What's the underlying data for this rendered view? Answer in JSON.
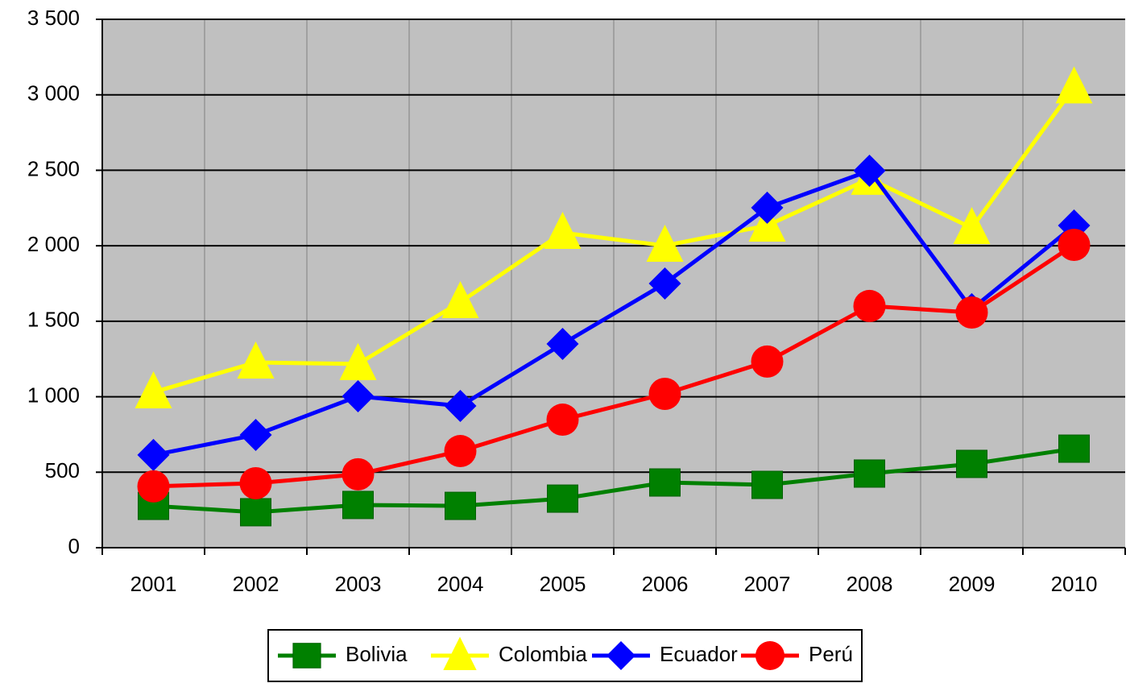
{
  "chart_data": {
    "type": "line",
    "categories": [
      "2001",
      "2002",
      "2003",
      "2004",
      "2005",
      "2006",
      "2007",
      "2008",
      "2009",
      "2010"
    ],
    "series": [
      {
        "name": "Bolivia",
        "color": "#008000",
        "marker": "square",
        "values": [
          277,
          235,
          283,
          277,
          325,
          432,
          416,
          491,
          555,
          656
        ]
      },
      {
        "name": "Colombia",
        "color": "#ffff00",
        "marker": "triangle",
        "values": [
          1030,
          1227,
          1217,
          1627,
          2086,
          2001,
          2134,
          2444,
          2118,
          3050
        ]
      },
      {
        "name": "Ecuador",
        "color": "#0000ff",
        "marker": "diamond",
        "values": [
          614,
          747,
          1003,
          939,
          1350,
          1750,
          2252,
          2497,
          1580,
          2134
        ]
      },
      {
        "name": "Perú",
        "color": "#ff0000",
        "marker": "circle",
        "values": [
          406,
          427,
          486,
          640,
          848,
          1019,
          1233,
          1601,
          1558,
          2006
        ]
      }
    ],
    "ylim": [
      0,
      3500
    ],
    "yticks": [
      0,
      500,
      {
        "value": 1000,
        "label": "1 000"
      },
      {
        "value": 1500,
        "label": "1 500"
      },
      {
        "value": 2000,
        "label": "2 000"
      },
      {
        "value": 2500,
        "label": "2 500"
      },
      {
        "value": 3000,
        "label": "3 000"
      },
      {
        "value": 3500,
        "label": "3 500"
      }
    ],
    "grid": true,
    "legend": "bottom"
  }
}
